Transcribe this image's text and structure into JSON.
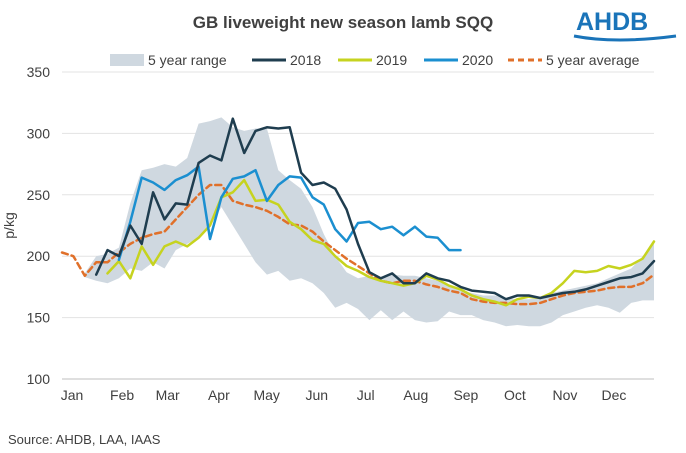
{
  "brand": {
    "logo": "AHDB",
    "color": "#1a74b9"
  },
  "source": "Source: AHDB, LAA, IAAS",
  "chart_data": {
    "type": "line",
    "title": "GB liveweight new season lamb SQQ",
    "xlabel": "",
    "ylabel": "p/kg",
    "ylim": [
      100,
      350
    ],
    "yticks": [
      100,
      150,
      200,
      250,
      300,
      350
    ],
    "xlim": [
      0,
      52
    ],
    "xticks": [
      {
        "label": "Jan",
        "week": 0
      },
      {
        "label": "Feb",
        "week": 4.4
      },
      {
        "label": "Mar",
        "week": 8.4
      },
      {
        "label": "Apr",
        "week": 12.9
      },
      {
        "label": "May",
        "week": 17.1
      },
      {
        "label": "Jun",
        "week": 21.5
      },
      {
        "label": "Jul",
        "week": 25.8
      },
      {
        "label": "Aug",
        "week": 30.2
      },
      {
        "label": "Sep",
        "week": 34.6
      },
      {
        "label": "Oct",
        "week": 38.9
      },
      {
        "label": "Nov",
        "week": 43.3
      },
      {
        "label": "Dec",
        "week": 47.6
      }
    ],
    "grid": "horizontal",
    "legend": "top",
    "range": {
      "name": "5 year range",
      "color": "#cfd8e0",
      "x": [
        2,
        3,
        4,
        5,
        6,
        7,
        8,
        9,
        10,
        11,
        12,
        13,
        14,
        15,
        16,
        17,
        18,
        19,
        20,
        21,
        22,
        23,
        24,
        25,
        26,
        27,
        28,
        29,
        30,
        31,
        32,
        33,
        34,
        35,
        36,
        37,
        38,
        39,
        40,
        41,
        42,
        43,
        44,
        45,
        46,
        47,
        48,
        49,
        50,
        51,
        52
      ],
      "upper": [
        186,
        200,
        202,
        207,
        243,
        270,
        272,
        275,
        273,
        280,
        308,
        310,
        313,
        305,
        302,
        304,
        304,
        270,
        262,
        255,
        240,
        218,
        200,
        187,
        182,
        184,
        182,
        185,
        184,
        184,
        182,
        180,
        175,
        172,
        170,
        168,
        168,
        166,
        165,
        165,
        166,
        170,
        172,
        174,
        176,
        178,
        182,
        186,
        190,
        200,
        210
      ],
      "lower": [
        183,
        180,
        178,
        182,
        190,
        188,
        195,
        190,
        205,
        210,
        215,
        225,
        240,
        225,
        210,
        195,
        185,
        188,
        180,
        182,
        178,
        170,
        158,
        162,
        157,
        148,
        156,
        148,
        155,
        148,
        146,
        147,
        155,
        152,
        152,
        148,
        146,
        143,
        144,
        143,
        143,
        146,
        152,
        155,
        158,
        160,
        158,
        154,
        162,
        164,
        164
      ]
    },
    "series": [
      {
        "name": "2018",
        "color": "#1f3d4f",
        "width": 2.5,
        "x": [
          3,
          4,
          5,
          6,
          7,
          8,
          9,
          10,
          11,
          12,
          13,
          14,
          15,
          16,
          17,
          18,
          19,
          20,
          21,
          22,
          23,
          24,
          25,
          26,
          27,
          28,
          29,
          30,
          31,
          32,
          33,
          34,
          35,
          36,
          37,
          38,
          39,
          40,
          41,
          42,
          43,
          44,
          45,
          46,
          47,
          48,
          49,
          50,
          51,
          52
        ],
        "y": [
          185,
          205,
          200,
          225,
          210,
          252,
          230,
          243,
          242,
          276,
          282,
          278,
          312,
          284,
          302,
          305,
          304,
          305,
          268,
          258,
          260,
          255,
          238,
          210,
          187,
          182,
          186,
          178,
          178,
          186,
          182,
          180,
          175,
          172,
          171,
          170,
          165,
          168,
          168,
          166,
          168,
          170,
          171,
          173,
          176,
          179,
          182,
          183,
          186,
          196
        ]
      },
      {
        "name": "2019",
        "color": "#c6d31f",
        "width": 2.5,
        "x": [
          4,
          5,
          6,
          7,
          8,
          9,
          10,
          11,
          12,
          13,
          14,
          15,
          16,
          17,
          18,
          19,
          20,
          21,
          22,
          23,
          24,
          25,
          26,
          27,
          28,
          29,
          30,
          31,
          32,
          33,
          34,
          35,
          36,
          37,
          38,
          39,
          40,
          41,
          42,
          43,
          44,
          45,
          46,
          47,
          48,
          49,
          50,
          51,
          52
        ],
        "y": [
          186,
          196,
          182,
          208,
          193,
          208,
          212,
          208,
          215,
          225,
          248,
          252,
          262,
          245,
          246,
          242,
          228,
          222,
          213,
          210,
          200,
          192,
          188,
          183,
          180,
          178,
          176,
          178,
          184,
          181,
          176,
          173,
          168,
          165,
          163,
          160,
          165,
          167,
          166,
          170,
          178,
          188,
          187,
          188,
          192,
          190,
          193,
          198,
          212
        ]
      },
      {
        "name": "2020",
        "color": "#1b8fd0",
        "width": 2.5,
        "x": [
          5,
          6,
          7,
          8,
          9,
          10,
          11,
          12,
          13,
          14,
          15,
          16,
          17,
          18,
          19,
          20,
          21,
          22,
          23,
          24,
          25,
          26,
          27,
          28,
          29,
          30,
          31,
          32,
          33,
          34,
          35
        ],
        "y": [
          197,
          228,
          264,
          260,
          254,
          262,
          266,
          273,
          214,
          248,
          263,
          265,
          270,
          245,
          258,
          265,
          264,
          248,
          242,
          222,
          212,
          227,
          228,
          222,
          224,
          217,
          224,
          216,
          215,
          205,
          205
        ]
      },
      {
        "name": "5 year average",
        "color": "#e0702a",
        "width": 2.5,
        "dash": "6,4",
        "x": [
          0,
          1,
          2,
          3,
          4,
          5,
          6,
          7,
          8,
          9,
          10,
          11,
          12,
          13,
          14,
          15,
          16,
          17,
          18,
          19,
          20,
          21,
          22,
          23,
          24,
          25,
          26,
          27,
          28,
          29,
          30,
          31,
          32,
          33,
          34,
          35,
          36,
          37,
          38,
          39,
          40,
          41,
          42,
          43,
          44,
          45,
          46,
          47,
          48,
          49,
          50,
          51,
          52
        ],
        "y": [
          203,
          200,
          184,
          195,
          195,
          203,
          210,
          215,
          218,
          220,
          230,
          240,
          250,
          258,
          258,
          245,
          242,
          240,
          237,
          232,
          226,
          225,
          220,
          212,
          205,
          198,
          192,
          186,
          180,
          178,
          180,
          180,
          177,
          175,
          172,
          170,
          165,
          163,
          162,
          162,
          161,
          161,
          162,
          165,
          168,
          170,
          171,
          172,
          174,
          175,
          175,
          178,
          185
        ]
      }
    ]
  }
}
